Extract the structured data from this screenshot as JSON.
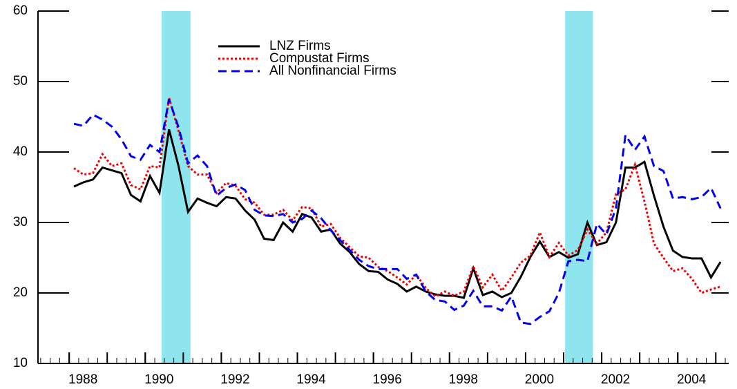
{
  "chart_data": {
    "type": "line",
    "x": [
      1988.125,
      1988.375,
      1988.625,
      1988.875,
      1989.125,
      1989.375,
      1989.625,
      1989.875,
      1990.125,
      1990.375,
      1990.625,
      1990.875,
      1991.125,
      1991.375,
      1991.625,
      1991.875,
      1992.125,
      1992.375,
      1992.625,
      1992.875,
      1993.125,
      1993.375,
      1993.625,
      1993.875,
      1994.125,
      1994.375,
      1994.625,
      1994.875,
      1995.125,
      1995.375,
      1995.625,
      1995.875,
      1996.125,
      1996.375,
      1996.625,
      1996.875,
      1997.125,
      1997.375,
      1997.625,
      1997.875,
      1998.125,
      1998.375,
      1998.625,
      1998.875,
      1999.125,
      1999.375,
      1999.625,
      1999.875,
      2000.125,
      2000.375,
      2000.625,
      2000.875,
      2001.125,
      2001.375,
      2001.625,
      2001.875,
      2002.125,
      2002.375,
      2002.625,
      2002.875,
      2003.125,
      2003.375,
      2003.625,
      2003.875,
      2004.125,
      2004.375,
      2004.625,
      2004.875,
      2005.125
    ],
    "series": [
      {
        "name": "LNZ Firms",
        "color": "#000000",
        "style": "solid",
        "values": [
          35.1,
          35.7,
          36.1,
          37.8,
          37.4,
          37.0,
          33.9,
          33.0,
          36.6,
          34.2,
          43.2,
          38.0,
          31.5,
          33.4,
          32.8,
          32.3,
          33.6,
          33.4,
          31.7,
          30.4,
          27.7,
          27.5,
          30.0,
          28.7,
          31.2,
          30.7,
          28.7,
          29.0,
          27.0,
          25.8,
          24.1,
          23.1,
          23.0,
          21.9,
          21.3,
          20.2,
          20.9,
          20.2,
          19.8,
          19.6,
          19.6,
          19.3,
          23.5,
          19.7,
          20.2,
          19.4,
          20.0,
          22.3,
          25.1,
          27.3,
          25.1,
          25.8,
          25.0,
          25.5,
          30.0,
          26.8,
          27.2,
          30.0,
          37.8,
          37.8,
          38.6,
          33.8,
          29.4,
          26.0,
          25.1,
          24.9,
          24.9,
          22.2,
          24.4
        ]
      },
      {
        "name": "Compustat Firms",
        "color": "#ee0000",
        "style": "dotted",
        "values": [
          37.7,
          36.8,
          37.0,
          39.7,
          38.0,
          38.4,
          35.3,
          34.7,
          38.0,
          37.8,
          47.7,
          43.0,
          38.0,
          36.8,
          36.8,
          34.2,
          35.6,
          35.2,
          33.3,
          32.8,
          31.1,
          31.1,
          31.8,
          30.3,
          32.2,
          32.0,
          29.4,
          29.8,
          27.8,
          26.5,
          25.2,
          25.0,
          23.7,
          23.1,
          22.2,
          21.2,
          22.6,
          20.7,
          19.5,
          20.2,
          19.6,
          20.2,
          23.8,
          20.8,
          22.6,
          20.3,
          22.2,
          24.3,
          25.3,
          28.6,
          25.1,
          27.1,
          25.3,
          26.1,
          29.0,
          27.0,
          28.6,
          34.0,
          34.7,
          38.2,
          33.0,
          27.0,
          25.0,
          23.1,
          23.5,
          22.0,
          20.0,
          20.5,
          20.9
        ]
      },
      {
        "name": "All Nonfinancial Firms",
        "color": "#0000ee",
        "style": "dashed",
        "values": [
          44.0,
          43.7,
          45.3,
          44.6,
          43.6,
          41.8,
          39.4,
          38.9,
          41.0,
          40.0,
          47.5,
          43.5,
          38.4,
          39.5,
          38.0,
          33.8,
          34.9,
          35.4,
          34.6,
          31.8,
          31.0,
          30.9,
          31.2,
          30.0,
          30.5,
          31.7,
          30.6,
          28.9,
          27.5,
          26.1,
          24.7,
          23.8,
          23.4,
          23.4,
          23.4,
          22.0,
          22.6,
          20.2,
          19.0,
          18.8,
          17.6,
          18.2,
          20.3,
          18.1,
          18.1,
          17.5,
          19.5,
          15.8,
          15.6,
          16.6,
          17.4,
          20.0,
          24.5,
          24.7,
          24.5,
          29.8,
          28.3,
          32.0,
          42.4,
          40.3,
          42.2,
          38.0,
          37.3,
          33.4,
          33.6,
          33.3,
          33.6,
          34.9,
          32.0
        ]
      }
    ],
    "shaded_regions": [
      [
        1990.43,
        1991.19
      ],
      [
        2001.04,
        2001.77
      ]
    ],
    "shade_color": "#8ee5ee",
    "xlim": [
      1987.18,
      2005.34
    ],
    "xticks": [
      1988,
      1990,
      1992,
      1994,
      1996,
      1998,
      2000,
      2002,
      2004
    ],
    "ylim": [
      10,
      60
    ],
    "yticks": [
      10,
      20,
      30,
      40,
      50,
      60
    ],
    "grid": false
  }
}
